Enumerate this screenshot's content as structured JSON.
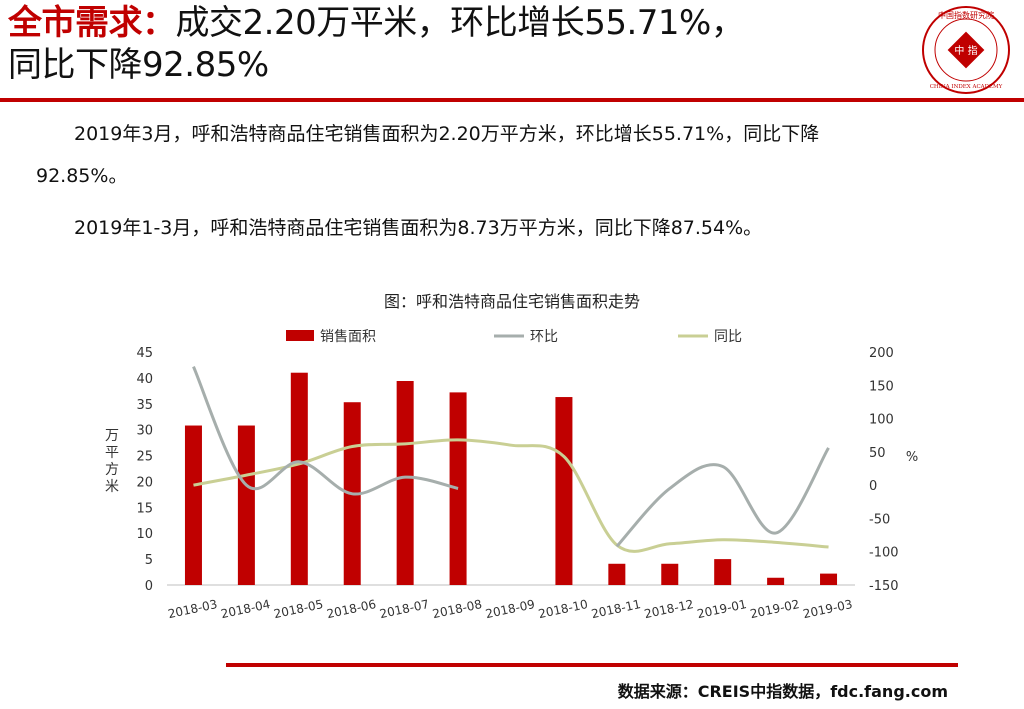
{
  "header": {
    "title_highlight": "全市需求：",
    "title_line1": "成交2.20万平米，环比增长55.71%，",
    "title_line2": "同比下降92.85%",
    "logo_top_text": "中国指数研究院",
    "logo_center_text": "中 指",
    "logo_bottom_text": "CHINA INDEX ACADEMY"
  },
  "body": {
    "para1_line1": "2019年3月，呼和浩特商品住宅销售面积为2.20万平方米，环比增长55.71%，同比下降",
    "para1_line2": "92.85%。",
    "para2": "2019年1-3月，呼和浩特商品住宅销售面积为8.73万平方米，同比下降87.54%。"
  },
  "chart_data": {
    "type": "bar",
    "title": "图：呼和浩特商品住宅销售面积走势",
    "ylabel": "万平方米",
    "y2label": "%",
    "categories": [
      "2018-03",
      "2018-04",
      "2018-05",
      "2018-06",
      "2018-07",
      "2018-08",
      "2018-09",
      "2018-10",
      "2018-11",
      "2018-12",
      "2019-01",
      "2019-02",
      "2019-03"
    ],
    "ylim": [
      0,
      45
    ],
    "y_ticks": [
      0,
      5,
      10,
      15,
      20,
      25,
      30,
      35,
      40,
      45
    ],
    "y2lim": [
      -150,
      200
    ],
    "y2_ticks": [
      -150,
      -100,
      -50,
      0,
      50,
      100,
      150,
      200
    ],
    "legend_position": "top",
    "series": [
      {
        "name": "销售面积",
        "type": "bar",
        "axis": "left",
        "color": "#c00000",
        "values": [
          30.8,
          30.8,
          41.0,
          35.3,
          39.4,
          37.2,
          null,
          36.3,
          4.1,
          4.1,
          5.0,
          1.4,
          2.2
        ]
      },
      {
        "name": "环比",
        "type": "line",
        "axis": "right",
        "color": "#a6aeac",
        "values": [
          178,
          0,
          35,
          -13,
          12,
          -5,
          null,
          null,
          null,
          null,
          28,
          -72,
          56
        ]
      },
      {
        "name": "同比",
        "type": "line",
        "axis": "right",
        "color": "#c9cf94",
        "values": [
          0,
          15,
          32,
          58,
          62,
          68,
          60,
          43,
          -90,
          -88,
          -82,
          -86,
          -93
        ]
      }
    ],
    "huanbi_segments": [
      {
        "x": [
          0,
          1,
          2,
          3,
          4,
          5
        ],
        "y": [
          178,
          0,
          35,
          -13,
          12,
          -5
        ]
      },
      {
        "x": [
          8,
          9,
          10,
          11,
          12
        ],
        "y": [
          -92,
          -5,
          28,
          -72,
          56
        ]
      }
    ]
  },
  "footer": {
    "source": "数据来源：CREIS中指数据，fdc.fang.com"
  }
}
